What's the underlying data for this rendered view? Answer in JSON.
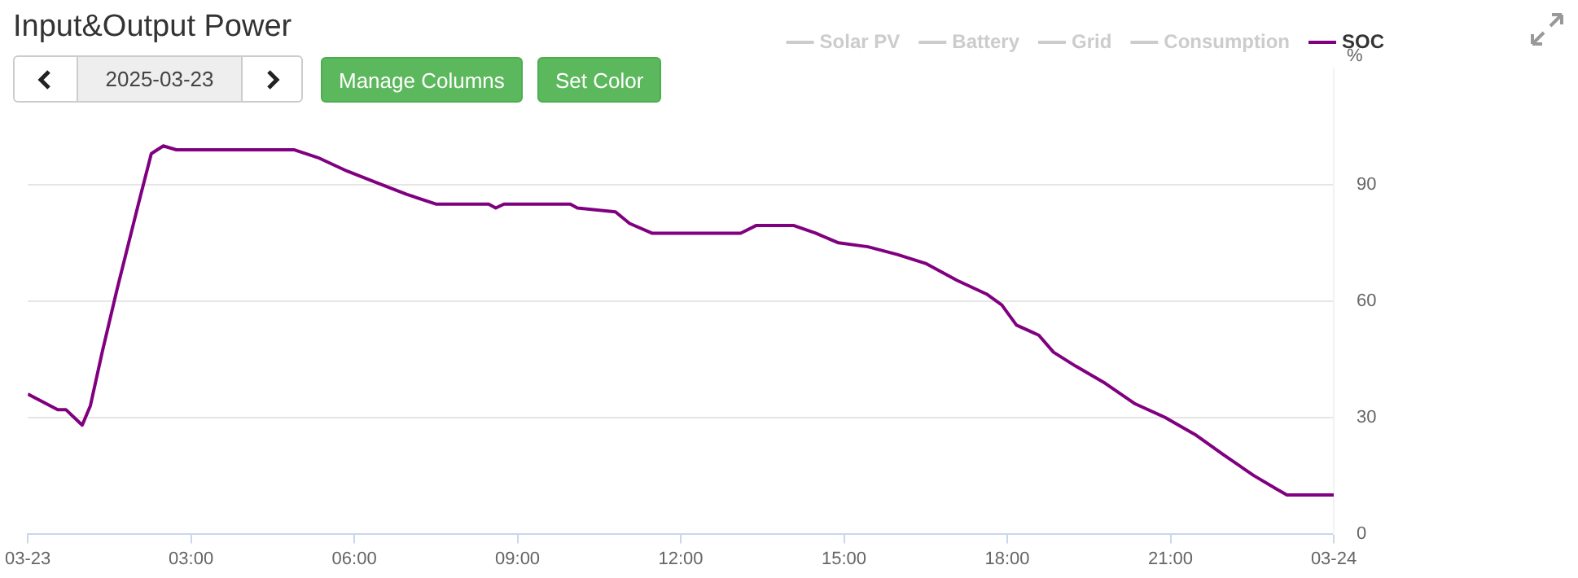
{
  "chart_data": {
    "type": "line",
    "title": "Input&Output Power",
    "ylabel": "%",
    "annotations": [
      "2025-03-23",
      "Manage Columns",
      "Set Color"
    ],
    "xlim": [
      0,
      24
    ],
    "xticks": [
      {
        "value": 0,
        "label": "03-23"
      },
      {
        "value": 3,
        "label": "03:00"
      },
      {
        "value": 6,
        "label": "06:00"
      },
      {
        "value": 9,
        "label": "09:00"
      },
      {
        "value": 12,
        "label": "12:00"
      },
      {
        "value": 15,
        "label": "15:00"
      },
      {
        "value": 18,
        "label": "18:00"
      },
      {
        "value": 21,
        "label": "21:00"
      },
      {
        "value": 24,
        "label": "03-24"
      }
    ],
    "ylim": [
      0,
      120
    ],
    "yticks": [
      0,
      30,
      60,
      90
    ],
    "grid": "y",
    "legend": "top right",
    "marker": "none",
    "line_style": "solid",
    "series": [
      {
        "name": "Solar PV",
        "color": "#cccccc"
      },
      {
        "name": "Battery",
        "color": "#cccccc"
      },
      {
        "name": "Grid",
        "color": "#cccccc"
      },
      {
        "name": "Consumption",
        "color": "#cccccc"
      },
      {
        "name": "SOC",
        "color": "#800080",
        "x": [
          0,
          0.55,
          0.7,
          1.0,
          1.15,
          1.37,
          1.64,
          2.05,
          2.27,
          2.49,
          2.73,
          3.5,
          4.9,
          5.33,
          5.87,
          6.42,
          6.97,
          7.5,
          8.47,
          8.6,
          8.75,
          9.97,
          10.1,
          10.8,
          11.06,
          11.47,
          13.1,
          13.39,
          14.07,
          14.48,
          14.9,
          15.44,
          15.98,
          16.5,
          17.08,
          17.62,
          17.9,
          18.17,
          18.58,
          18.85,
          19.26,
          19.8,
          20.35,
          20.9,
          21.45,
          21.98,
          22.53,
          22.95,
          23.14,
          24
        ],
        "values": [
          36,
          32,
          32,
          28,
          33,
          47,
          63,
          86,
          98,
          100,
          99,
          99,
          99,
          97,
          93.5,
          90.5,
          87.5,
          85,
          85,
          84,
          85,
          85,
          84,
          83,
          80,
          77.5,
          77.5,
          79.5,
          79.5,
          77.5,
          75,
          74,
          72,
          69.7,
          65.3,
          61.8,
          59,
          53.8,
          51.2,
          46.8,
          43.2,
          38.8,
          33.5,
          30,
          25.6,
          20.3,
          15,
          11.5,
          10,
          10
        ]
      }
    ]
  }
}
